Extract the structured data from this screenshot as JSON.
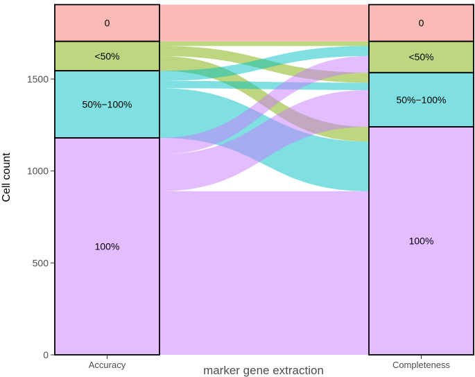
{
  "chart_data": {
    "type": "alluvial",
    "xlabel": "marker gene extraction",
    "ylabel": "Cell count",
    "ylim": [
      0,
      1930
    ],
    "yticks": [
      0,
      500,
      1000,
      1500
    ],
    "axes": [
      "Accuracy",
      "Completeness"
    ],
    "categories": [
      "0",
      "<50%",
      "50%−100%",
      "100%"
    ],
    "category_colors": {
      "0": "#F8766D",
      "<50%": "#7CAE00",
      "50%−100%": "#00BFC4",
      "100%": "#C77CFF"
    },
    "strata": {
      "Accuracy": [
        {
          "label": "0",
          "value": 200
        },
        {
          "label": "<50%",
          "value": 160
        },
        {
          "label": "50%−100%",
          "value": 365
        },
        {
          "label": "100%",
          "value": 1180
        }
      ],
      "Completeness": [
        {
          "label": "0",
          "value": 200
        },
        {
          "label": "<50%",
          "value": 170
        },
        {
          "label": "50%−100%",
          "value": 295
        },
        {
          "label": "100%",
          "value": 1240
        }
      ]
    },
    "flows": [
      {
        "from": "0",
        "to": "0",
        "value": 200
      },
      {
        "from": "<50%",
        "to": "<50%",
        "value": 25
      },
      {
        "from": "<50%",
        "to": "50%−100%",
        "value": 55
      },
      {
        "from": "<50%",
        "to": "100%",
        "value": 80
      },
      {
        "from": "50%−100%",
        "to": "<50%",
        "value": 55
      },
      {
        "from": "50%−100%",
        "to": "50%−100%",
        "value": 40
      },
      {
        "from": "50%−100%",
        "to": "100%",
        "value": 270
      },
      {
        "from": "100%",
        "to": "<50%",
        "value": 90
      },
      {
        "from": "100%",
        "to": "50%−100%",
        "value": 200
      },
      {
        "from": "100%",
        "to": "100%",
        "value": 890
      }
    ]
  }
}
